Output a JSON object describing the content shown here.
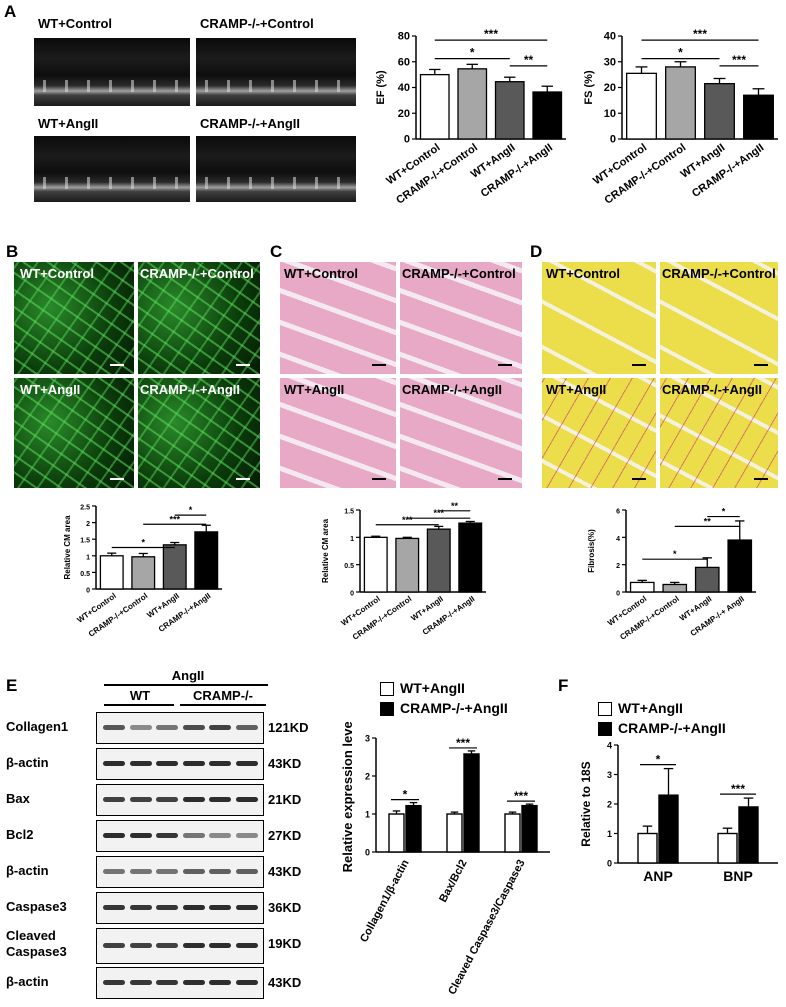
{
  "panels": {
    "A": "A",
    "B": "B",
    "C": "C",
    "D": "D",
    "E": "E",
    "F": "F"
  },
  "groups": {
    "wt_control": "WT+Control",
    "cramp_control": "CRAMP-/-+Control",
    "wt_angii": "WT+AngII",
    "cramp_angii": "CRAMP-/-+AngII"
  },
  "colors": {
    "wt_control": "#ffffff",
    "cramp_control": "#a6a6a6",
    "wt_angii": "#595959",
    "cramp_angii": "#000000"
  },
  "sig": {
    "s1": "*",
    "s2": "**",
    "s3": "***"
  },
  "chart_data": [
    {
      "id": "EF",
      "type": "bar",
      "ylabel": "EF (%)",
      "ylim": [
        0,
        80
      ],
      "yticks": [
        0,
        20,
        40,
        60,
        80
      ],
      "categories": [
        "WT+Control",
        "CRAMP-/-+Control",
        "WT+AngII",
        "CRAMP-/-+AngII"
      ],
      "values": [
        50,
        54.5,
        44.5,
        36.5
      ],
      "errors": [
        4,
        3.5,
        3.5,
        4.5
      ],
      "significance": [
        {
          "pair": [
            0,
            2
          ],
          "label": "*"
        },
        {
          "pair": [
            0,
            3
          ],
          "label": "***"
        },
        {
          "pair": [
            2,
            3
          ],
          "label": "**"
        }
      ]
    },
    {
      "id": "FS",
      "type": "bar",
      "ylabel": "FS (%)",
      "ylim": [
        0,
        40
      ],
      "yticks": [
        0,
        10,
        20,
        30,
        40
      ],
      "categories": [
        "WT+Control",
        "CRAMP-/-+Control",
        "WT+AngII",
        "CRAMP-/-+AngII"
      ],
      "values": [
        25.5,
        28,
        21.5,
        17
      ],
      "errors": [
        2.5,
        2,
        2,
        2.5
      ],
      "significance": [
        {
          "pair": [
            0,
            2
          ],
          "label": "*"
        },
        {
          "pair": [
            0,
            3
          ],
          "label": "***"
        },
        {
          "pair": [
            2,
            3
          ],
          "label": "***"
        }
      ]
    },
    {
      "id": "B_CM",
      "type": "bar",
      "ylabel": "Relative CM area",
      "ylim": [
        0,
        2.5
      ],
      "yticks": [
        0,
        0.5,
        1.0,
        1.5,
        2.0,
        2.5
      ],
      "categories": [
        "WT+Control",
        "CRAMP-/-+Control",
        "WT+AngII",
        "CRAMP-/-+AngII"
      ],
      "values": [
        1.0,
        0.97,
        1.33,
        1.72
      ],
      "errors": [
        0.08,
        0.1,
        0.07,
        0.2
      ],
      "significance": [
        {
          "pair": [
            0,
            2
          ],
          "label": "*"
        },
        {
          "pair": [
            1,
            3
          ],
          "label": "***"
        },
        {
          "pair": [
            2,
            3
          ],
          "label": "*"
        }
      ]
    },
    {
      "id": "C_CM",
      "type": "bar",
      "ylabel": "Relative CM area",
      "ylim": [
        0,
        1.5
      ],
      "yticks": [
        0,
        0.5,
        1.0,
        1.5
      ],
      "categories": [
        "WT+Control",
        "CRAMP-/-+Control",
        "WT+AngII",
        "CRAMP-/-+AngII"
      ],
      "values": [
        1.0,
        0.98,
        1.15,
        1.26
      ],
      "errors": [
        0.02,
        0.02,
        0.05,
        0.03
      ],
      "significance": [
        {
          "pair": [
            0,
            2
          ],
          "label": "***"
        },
        {
          "pair": [
            1,
            3
          ],
          "label": "***"
        },
        {
          "pair": [
            2,
            3
          ],
          "label": "**"
        }
      ]
    },
    {
      "id": "D_Fib",
      "type": "bar",
      "ylabel": "Fibrosis(%)",
      "ylim": [
        0,
        6
      ],
      "yticks": [
        0,
        2,
        4,
        6
      ],
      "categories": [
        "WT+Control",
        "CRAMP-/-+Control",
        "WT+AngII",
        "CRAMP-/-+ AngII"
      ],
      "values": [
        0.7,
        0.55,
        1.8,
        3.8
      ],
      "errors": [
        0.15,
        0.15,
        0.7,
        1.4
      ],
      "significance": [
        {
          "pair": [
            0,
            2
          ],
          "label": "*"
        },
        {
          "pair": [
            1,
            3
          ],
          "label": "**"
        },
        {
          "pair": [
            2,
            3
          ],
          "label": "*"
        }
      ]
    },
    {
      "id": "E_expr",
      "type": "bar",
      "ylabel": "Relative expression level",
      "ylim": [
        0,
        3
      ],
      "yticks": [
        0,
        1,
        2,
        3
      ],
      "categories": [
        "Collagen1/β-actin",
        "Bax/Bcl2",
        "Cleaved Caspase3/Caspase3"
      ],
      "series": [
        {
          "name": "WT+AngII",
          "values": [
            1.0,
            1.0,
            1.0
          ],
          "errors": [
            0.08,
            0.05,
            0.05
          ]
        },
        {
          "name": "CRAMP-/-+AngII",
          "values": [
            1.22,
            2.58,
            1.22
          ],
          "errors": [
            0.08,
            0.08,
            0.04
          ]
        }
      ],
      "significance": [
        "*",
        "***",
        "***"
      ]
    },
    {
      "id": "F_rel",
      "type": "bar",
      "ylabel": "Relative to 18S",
      "ylim": [
        0,
        4
      ],
      "yticks": [
        0,
        1,
        2,
        3,
        4
      ],
      "categories": [
        "ANP",
        "BNP"
      ],
      "series": [
        {
          "name": "WT+AngII",
          "values": [
            1.0,
            1.0
          ],
          "errors": [
            0.25,
            0.18
          ]
        },
        {
          "name": "CRAMP-/-+AngII",
          "values": [
            2.3,
            1.9
          ],
          "errors": [
            0.9,
            0.3
          ]
        }
      ],
      "significance": [
        "*",
        "***"
      ]
    }
  ],
  "blot": {
    "treatment": "AngII",
    "wt": "WT",
    "cramp": "CRAMP-/-",
    "rows": [
      {
        "label": "Collagen1",
        "kd": "121KD"
      },
      {
        "label": "β-actin",
        "kd": "43KD"
      },
      {
        "label": "Bax",
        "kd": "21KD"
      },
      {
        "label": "Bcl2",
        "kd": "27KD"
      },
      {
        "label": "β-actin",
        "kd": "43KD"
      },
      {
        "label": "Caspase3",
        "kd": "36KD"
      },
      {
        "label": "Cleaved Caspase3",
        "kd": "19KD"
      },
      {
        "label": "β-actin",
        "kd": "43KD"
      }
    ]
  },
  "legend": {
    "wt": "WT+AngII",
    "cramp": "CRAMP-/-+AngII"
  }
}
